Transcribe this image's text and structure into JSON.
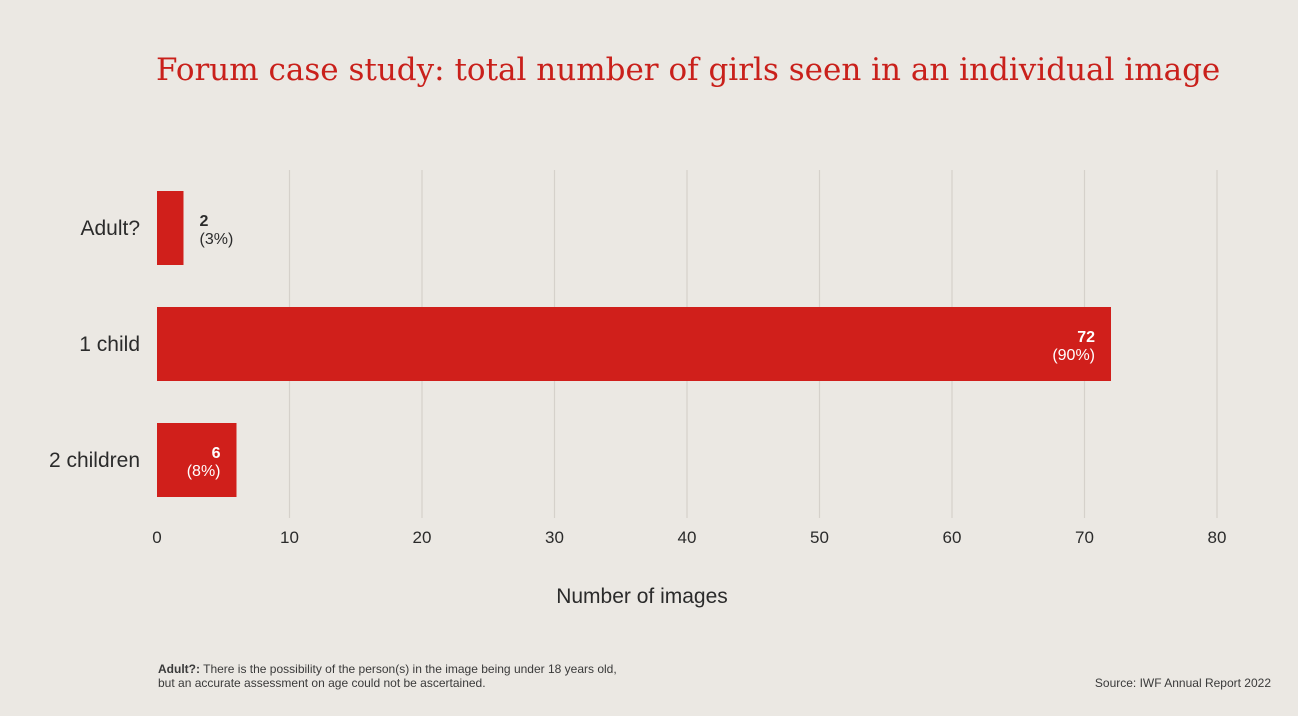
{
  "chart_data": {
    "type": "bar",
    "orientation": "horizontal",
    "title": "Forum case study: total number of girls seen in an individual image",
    "categories": [
      "Adult?",
      "1 child",
      "2 children"
    ],
    "values": [
      2,
      72,
      6
    ],
    "value_labels": [
      "2",
      "72",
      "6"
    ],
    "percent_labels": [
      "(3%)",
      "(90%)",
      "(8%)"
    ],
    "xlabel": "Number of images",
    "ylabel": "",
    "xlim": [
      0,
      80
    ],
    "xticks": [
      0,
      10,
      20,
      30,
      40,
      50,
      60,
      70,
      80
    ],
    "grid": true,
    "bar_color": "#d01f1b"
  },
  "footnote": {
    "term": "Adult?:",
    "line1": "There is the possibility of the person(s) in the image being under 18 years old,",
    "line2": "but an accurate assessment on age could not be ascertained."
  },
  "source": "Source: IWF Annual Report 2022",
  "colors": {
    "background": "#ebe8e3",
    "accent": "#c9201b",
    "grid": "#d5d1cb",
    "text": "#2b2b2b"
  }
}
